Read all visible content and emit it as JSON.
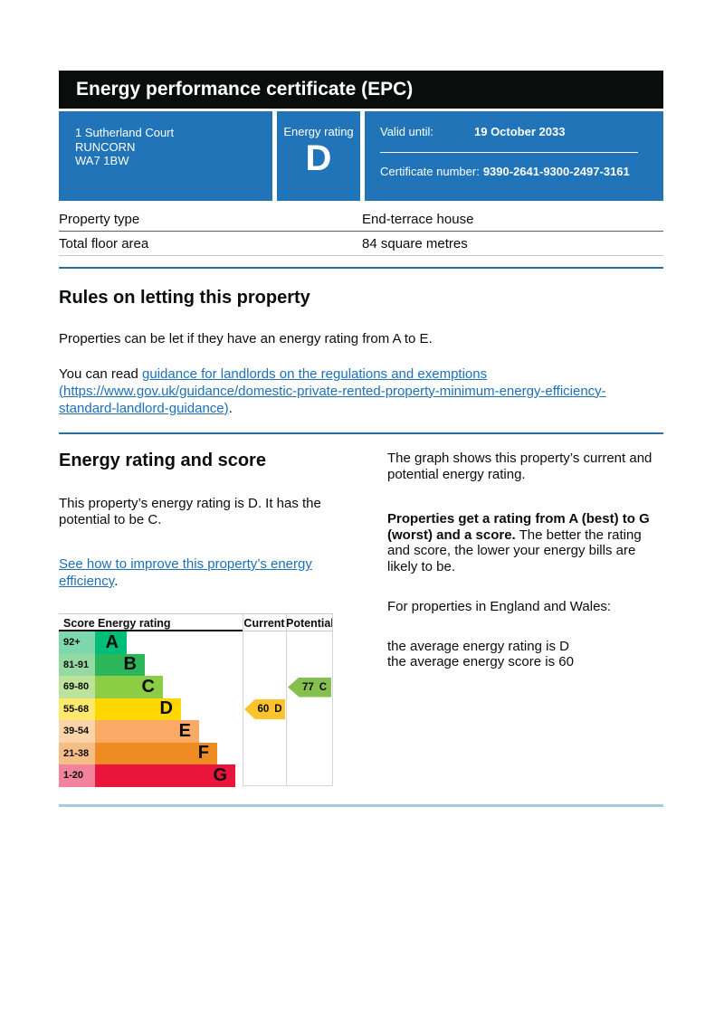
{
  "header": {
    "title": "Energy performance certificate (EPC)"
  },
  "summary_panel": {
    "address_lines": [
      "1 Sutherland Court",
      "RUNCORN",
      "WA7 1BW"
    ],
    "rating_label": "Energy rating",
    "rating_value": "D",
    "valid_until_label": "Valid until:",
    "valid_until_value": "19 October 2033",
    "certificate_number_label": "Certificate number:",
    "certificate_number_value": "9390-2641-9300-2497-3161"
  },
  "property_table": {
    "rows": [
      {
        "label": "Property type",
        "value": "End-terrace house"
      },
      {
        "label": "Total floor area",
        "value": "84 square metres"
      }
    ]
  },
  "rules_section": {
    "heading": "Rules on letting this property",
    "paragraph": "Properties can be let if they have an energy rating from A to E.",
    "link_prefix": "You can read ",
    "link_text": "guidance for landlords on the regulations and exemptions (https://www.gov.uk/guidance/domestic-private-rented-property-minimum-energy-efficiency-standard-landlord-guidance)",
    "link_suffix": "."
  },
  "rating_section": {
    "heading": "Energy rating and score",
    "paragraph": "This property’s energy rating is D. It has the potential to be C.",
    "improve_link_text": "See how to improve this property’s energy efficiency",
    "improve_link_suffix": ".",
    "right_column": {
      "para1": "The graph shows this property’s current and potential energy rating.",
      "para2_bold": "Properties get a rating from A (best) to G (worst) and a score.",
      "para2_rest": " The better the rating and score, the lower your energy bills are likely to be.",
      "para3": "For properties in England and Wales:",
      "para4_line1": "the average energy rating is D",
      "para4_line2": "the average energy score is 60"
    }
  },
  "chart_data": {
    "type": "bar",
    "title": "Energy rating graph (current and potential)",
    "columns": {
      "score": "Score",
      "rating": "Energy rating",
      "current": "Current",
      "potential": "Potential"
    },
    "bands": [
      {
        "score_range": "92+",
        "letter": "A",
        "min": 92,
        "max": 100,
        "color": "#00be78",
        "tint": "#7fd7ae"
      },
      {
        "score_range": "81-91",
        "letter": "B",
        "min": 81,
        "max": 91,
        "color": "#2db55a",
        "tint": "#96daa3"
      },
      {
        "score_range": "69-80",
        "letter": "C",
        "min": 69,
        "max": 80,
        "color": "#8ccd46",
        "tint": "#bde29a"
      },
      {
        "score_range": "55-68",
        "letter": "D",
        "min": 55,
        "max": 68,
        "color": "#ffd600",
        "tint": "#ffe96d"
      },
      {
        "score_range": "39-54",
        "letter": "E",
        "min": 39,
        "max": 54,
        "color": "#fbaa65",
        "tint": "#fdd4aa"
      },
      {
        "score_range": "21-38",
        "letter": "F",
        "min": 21,
        "max": 38,
        "color": "#ee8b23",
        "tint": "#f6be87"
      },
      {
        "score_range": "1-20",
        "letter": "G",
        "min": 1,
        "max": 20,
        "color": "#e9153b",
        "tint": "#f2839b"
      }
    ],
    "current": {
      "score": 60,
      "letter": "D",
      "band_index": 3,
      "arrow_color": "#fcc32d"
    },
    "potential": {
      "score": 77,
      "letter": "C",
      "band_index": 2,
      "arrow_color": "#85bf4f"
    },
    "legend_position": "in-column-headers",
    "grid": false
  }
}
